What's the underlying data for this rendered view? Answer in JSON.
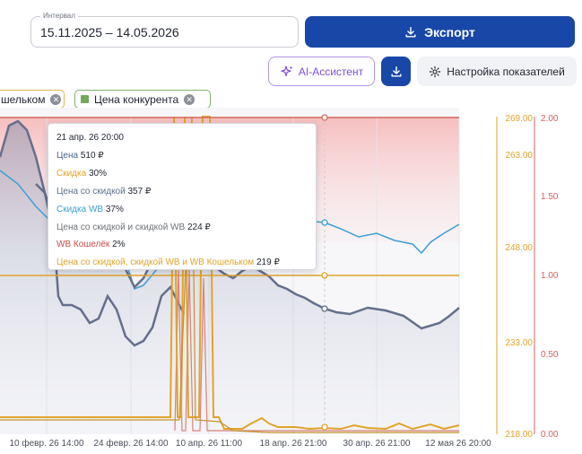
{
  "interval": {
    "label": "Интервал",
    "value": "15.11.2025 – 14.05.2026"
  },
  "buttons": {
    "export": "Экспорт",
    "ai": "AI-Ассистент",
    "settings": "Настройка показателей"
  },
  "chips": [
    {
      "label": "шельком"
    },
    {
      "label": "Цена конкурента"
    }
  ],
  "axes": {
    "right1_ticks": [
      "269.00",
      "263.00",
      "248.00",
      "233.00",
      "218.00"
    ],
    "right2_ticks": [
      "2.00",
      "1.50",
      "1.00",
      "0.50",
      "0.00"
    ],
    "x_ticks": [
      "10 февр. 26 14:00",
      "24 февр. 26 14:00",
      "10 апр. 26 11:00",
      "18 апр. 26 21:00",
      "30 апр. 26 21:00",
      "12 мая 26 20:00"
    ]
  },
  "tooltip": {
    "date": "21 апр. 26 20:00",
    "rows": [
      {
        "name": "Цена",
        "value": "510 ₽",
        "color": "#4a6593"
      },
      {
        "name": "Скидка",
        "value": "30%",
        "color": "#e1a32b"
      },
      {
        "name": "Цена со скидкой",
        "value": "357 ₽",
        "color": "#5c6f8c"
      },
      {
        "name": "Скидка WB",
        "value": "37%",
        "color": "#3aa0d6"
      },
      {
        "name": "Цена со скидкой и скидкой WB",
        "value": "224 ₽",
        "color": "#6f7378"
      },
      {
        "name": "WB Кошелёк",
        "value": "2%",
        "color": "#d04a4a"
      },
      {
        "name": "Цена со скидкой, скидкой WB и WB Кошельком",
        "value": "219 ₽",
        "color": "#e1a32b"
      }
    ]
  },
  "colors": {
    "accent": "#1947a8",
    "ai": "#7e4ed6",
    "orange_axis": "#e1a32b",
    "red_axis": "#d06060"
  }
}
